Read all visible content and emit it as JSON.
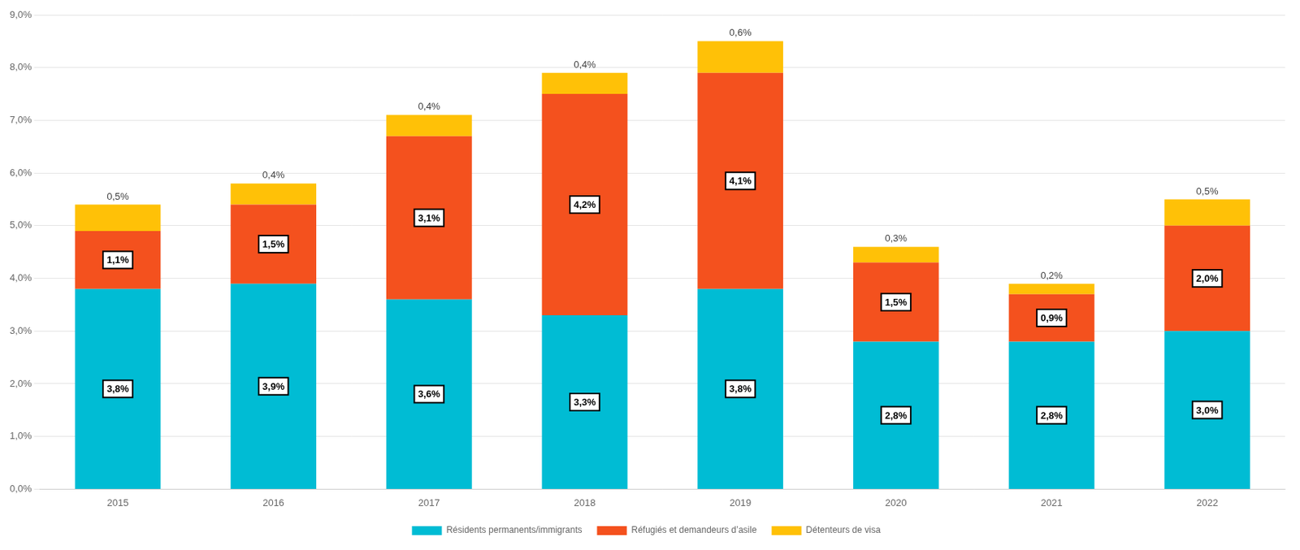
{
  "chart_data": {
    "type": "bar",
    "stacked": true,
    "categories": [
      "2015",
      "2016",
      "2017",
      "2018",
      "2019",
      "2020",
      "2021",
      "2022"
    ],
    "series": [
      {
        "name": "Résidents permanents/immigrants",
        "color": "#00BCD4",
        "values": [
          3.8,
          3.9,
          3.6,
          3.3,
          3.8,
          2.8,
          2.8,
          3.0
        ],
        "value_labels": [
          "3,8%",
          "3,9%",
          "3,6%",
          "3,3%",
          "3,8%",
          "2,8%",
          "2,8%",
          "3,0%"
        ]
      },
      {
        "name": "Réfugiés et demandeurs d’asile",
        "color": "#F4511E",
        "values": [
          1.1,
          1.5,
          3.1,
          4.2,
          4.1,
          1.5,
          0.9,
          2.0
        ],
        "value_labels": [
          "1,1%",
          "1,5%",
          "3,1%",
          "4,2%",
          "4,1%",
          "1,5%",
          "0,9%",
          "2,0%"
        ]
      },
      {
        "name": "Détenteurs de visa",
        "color": "#FFC107",
        "values": [
          0.5,
          0.4,
          0.4,
          0.4,
          0.6,
          0.3,
          0.2,
          0.5
        ],
        "value_labels": [
          "0,5%",
          "0,4%",
          "0,4%",
          "0,4%",
          "0,6%",
          "0,3%",
          "0,2%",
          "0,5%"
        ]
      }
    ],
    "ylim": [
      0,
      9.0
    ],
    "yticks": [
      {
        "value": 0.0,
        "label": "0,0%"
      },
      {
        "value": 1.0,
        "label": "1,0%"
      },
      {
        "value": 2.0,
        "label": "2,0%"
      },
      {
        "value": 3.0,
        "label": "3,0%"
      },
      {
        "value": 4.0,
        "label": "4,0%"
      },
      {
        "value": 5.0,
        "label": "5,0%"
      },
      {
        "value": 6.0,
        "label": "6,0%"
      },
      {
        "value": 7.0,
        "label": "7,0%"
      },
      {
        "value": 8.0,
        "label": "8,0%"
      },
      {
        "value": 9.0,
        "label": "9,0%"
      }
    ],
    "grid": "y",
    "legend": "bottom",
    "data_labels": true
  }
}
